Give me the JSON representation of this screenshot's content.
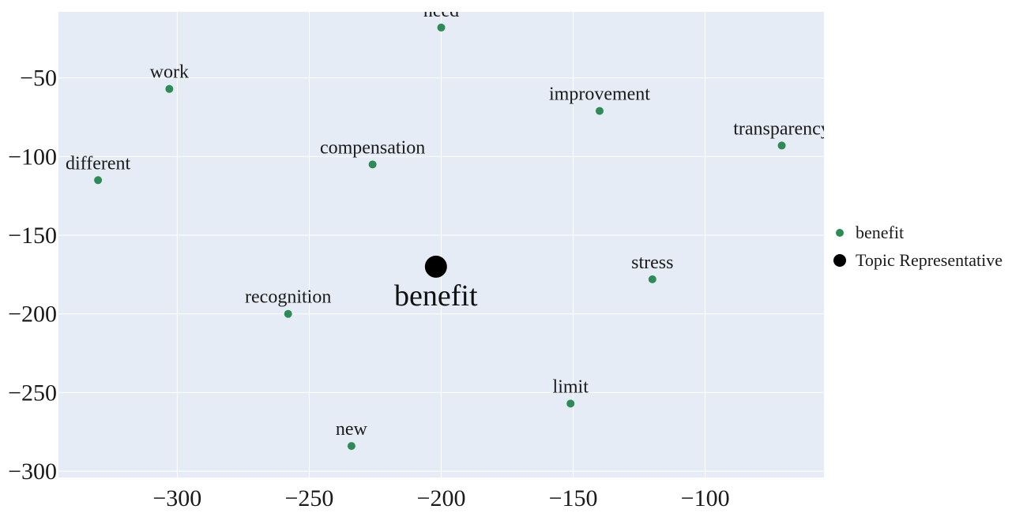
{
  "chart_data": {
    "type": "scatter",
    "title": "",
    "xlabel": "",
    "ylabel": "",
    "xlim": [
      -345,
      -55
    ],
    "ylim": [
      -304,
      -8
    ],
    "x_ticks": [
      -300,
      -250,
      -200,
      -150,
      -100
    ],
    "y_ticks": [
      -50,
      -100,
      -150,
      -200,
      -250,
      -300
    ],
    "x_tick_labels": [
      "−300",
      "−250",
      "−200",
      "−150",
      "−100"
    ],
    "y_tick_labels": [
      "−50",
      "−100",
      "−150",
      "−200",
      "−250",
      "−300"
    ],
    "grid": true,
    "legend_position": "right",
    "series": [
      {
        "name": "benefit",
        "color": "#2e8b57",
        "points": [
          {
            "label": "need",
            "x": -200,
            "y": -18
          },
          {
            "label": "work",
            "x": -303,
            "y": -57
          },
          {
            "label": "improvement",
            "x": -140,
            "y": -71
          },
          {
            "label": "transparency",
            "x": -71,
            "y": -93
          },
          {
            "label": "compensation",
            "x": -226,
            "y": -105
          },
          {
            "label": "different",
            "x": -330,
            "y": -115
          },
          {
            "label": "stress",
            "x": -120,
            "y": -178
          },
          {
            "label": "recognition",
            "x": -258,
            "y": -200
          },
          {
            "label": "limit",
            "x": -151,
            "y": -257
          },
          {
            "label": "new",
            "x": -234,
            "y": -284
          }
        ]
      },
      {
        "name": "Topic Representative",
        "color": "#000000",
        "points": [
          {
            "label": "benefit",
            "x": -202,
            "y": -170
          }
        ]
      }
    ]
  }
}
